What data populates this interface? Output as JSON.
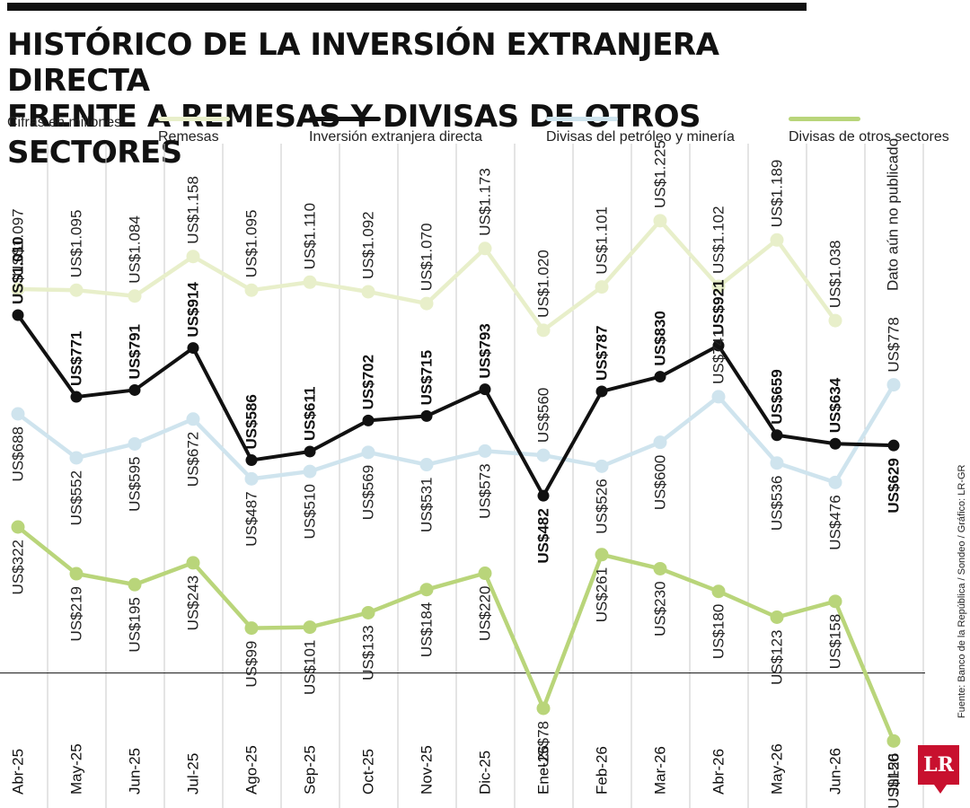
{
  "header": {
    "title_line1": "HISTÓRICO DE LA INVERSIÓN EXTRANJERA DIRECTA",
    "title_line2": "FRENTE A REMESAS Y DIVISAS DE OTROS SECTORES",
    "units": "Cifras en millones"
  },
  "legend": [
    {
      "label": "Remesas",
      "color": "#e8efca"
    },
    {
      "label": "Inversión extranjera directa",
      "color": "#111111"
    },
    {
      "label": "Divisas del petróleo y minería",
      "color": "#cfe4ee"
    },
    {
      "label": "Divisas de otros sectores",
      "color": "#b9d57a"
    }
  ],
  "source": "Fuente: Banco de la República / Sondeo / Gráfico: LR-GR",
  "logo": "LR",
  "chart_data": {
    "type": "line",
    "categories": [
      "Abr-25",
      "May-25",
      "Jun-25",
      "Jul-25",
      "Ago-25",
      "Sep-25",
      "Oct-25",
      "Nov-25",
      "Dic-25",
      "Ene-26",
      "Feb-26",
      "Mar-26",
      "Abr-26",
      "May-26",
      "Jun-26",
      "Jul-26"
    ],
    "note": "Dato aún no publicado",
    "series": [
      {
        "name": "Remesas",
        "color": "#e8efca",
        "values": [
          1097,
          1095,
          1084,
          1158,
          1095,
          1110,
          1092,
          1070,
          1173,
          1020,
          1101,
          1225,
          1102,
          1189,
          1038,
          null
        ],
        "labels": [
          "US$1.097",
          "US$1.095",
          "US$1.084",
          "US$1.158",
          "US$1.095",
          "US$1.110",
          "US$1.092",
          "US$1.070",
          "US$1.173",
          "US$1.020",
          "US$1.101",
          "US$1.225",
          "US$1.102",
          "US$1.189",
          "US$1.038",
          ""
        ]
      },
      {
        "name": "Inversión extranjera directa",
        "color": "#111111",
        "values": [
          1010,
          771,
          791,
          914,
          586,
          611,
          702,
          715,
          793,
          482,
          787,
          830,
          921,
          659,
          634,
          629
        ],
        "labels": [
          "US$1.010",
          "US$771",
          "US$791",
          "US$914",
          "US$586",
          "US$611",
          "US$702",
          "US$715",
          "US$793",
          "US$482",
          "US$787",
          "US$830",
          "US$921",
          "US$659",
          "US$634",
          "US$629"
        ]
      },
      {
        "name": "Divisas del petróleo y minería",
        "color": "#cfe4ee",
        "values": [
          688,
          552,
          595,
          672,
          487,
          510,
          569,
          531,
          573,
          560,
          526,
          600,
          741,
          536,
          476,
          778
        ],
        "labels": [
          "US$688",
          "US$552",
          "US$595",
          "US$672",
          "US$487",
          "US$510",
          "US$569",
          "US$531",
          "US$573",
          "US$560",
          "US$526",
          "US$600",
          "US$741",
          "US$536",
          "US$476",
          "US$778"
        ]
      },
      {
        "name": "Divisas de otros sectores",
        "color": "#b9d57a",
        "values": [
          322,
          219,
          195,
          243,
          99,
          101,
          133,
          184,
          220,
          -78,
          261,
          230,
          180,
          123,
          158,
          -150
        ],
        "labels": [
          "US$322",
          "US$219",
          "US$195",
          "US$243",
          "US$99",
          "US$101",
          "US$133",
          "US$184",
          "US$220",
          "-US$78",
          "US$261",
          "US$230",
          "US$180",
          "US$123",
          "US$158",
          "-US$150"
        ]
      }
    ]
  }
}
